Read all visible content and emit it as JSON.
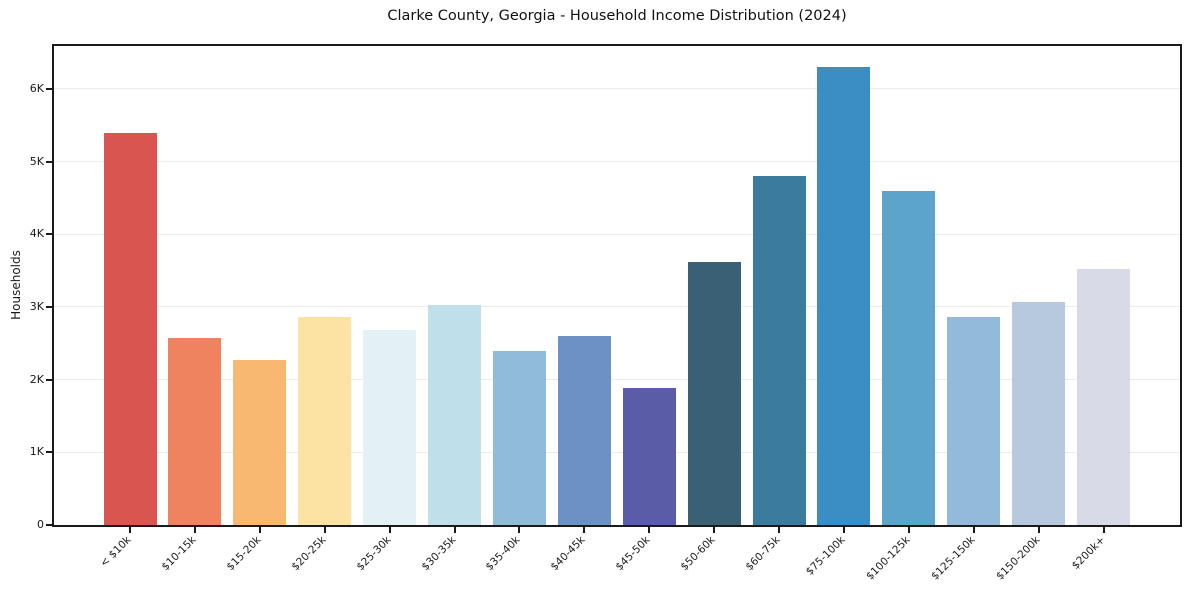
{
  "title": "Clarke County, Georgia - Household Income Distribution (2024)",
  "chart_data": {
    "type": "bar",
    "title": "Clarke County, Georgia - Household Income Distribution (2024)",
    "xlabel": "",
    "ylabel": "Households",
    "ylim": [
      0,
      6590
    ],
    "grid": "horizontal",
    "legend": "none",
    "yticks": [
      {
        "value": 0,
        "label": "0"
      },
      {
        "value": 1000,
        "label": "1K"
      },
      {
        "value": 2000,
        "label": "2K"
      },
      {
        "value": 3000,
        "label": "3K"
      },
      {
        "value": 4000,
        "label": "4K"
      },
      {
        "value": 5000,
        "label": "5K"
      },
      {
        "value": 6000,
        "label": "6K"
      }
    ],
    "bars": [
      {
        "category": "< $10k",
        "value": 5390,
        "color": "#d8564f"
      },
      {
        "category": "$10-15k",
        "value": 2570,
        "color": "#f0835f"
      },
      {
        "category": "$15-20k",
        "value": 2270,
        "color": "#f9b872"
      },
      {
        "category": "$20-25k",
        "value": 2860,
        "color": "#fce3a3"
      },
      {
        "category": "$25-30k",
        "value": 2680,
        "color": "#e3f0f4"
      },
      {
        "category": "$30-35k",
        "value": 3030,
        "color": "#bfe0ea"
      },
      {
        "category": "$35-40k",
        "value": 2390,
        "color": "#90bcda"
      },
      {
        "category": "$40-45k",
        "value": 2600,
        "color": "#6c91c4"
      },
      {
        "category": "$45-50k",
        "value": 1880,
        "color": "#5a5ca8"
      },
      {
        "category": "$50-60k",
        "value": 3620,
        "color": "#396075"
      },
      {
        "category": "$60-75k",
        "value": 4800,
        "color": "#3a7b9e"
      },
      {
        "category": "$75-100k",
        "value": 6300,
        "color": "#3a8ec4"
      },
      {
        "category": "$100-125k",
        "value": 4600,
        "color": "#5ca4c9"
      },
      {
        "category": "$125-150k",
        "value": 2860,
        "color": "#93bada"
      },
      {
        "category": "$150-200k",
        "value": 3070,
        "color": "#b7c9df"
      },
      {
        "category": "$200k+",
        "value": 3520,
        "color": "#d8dae8"
      }
    ]
  }
}
